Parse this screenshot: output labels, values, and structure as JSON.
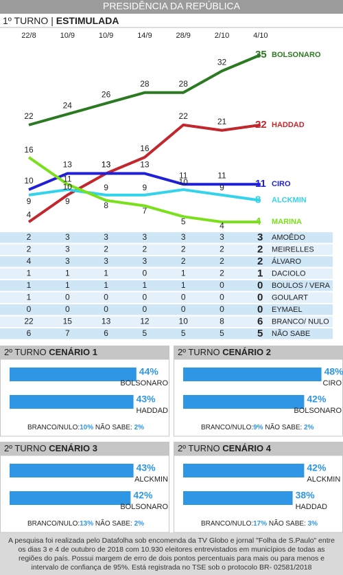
{
  "header": {
    "title": "PRESIDÊNCIA DA REPÚBLICA"
  },
  "chart_data": [
    {
      "type": "line",
      "title": "1º TURNO |",
      "subtitle": "ESTIMULADA",
      "categories": [
        "22/8",
        "10/9",
        "10/9",
        "14/9",
        "28/9",
        "2/10",
        "4/10"
      ],
      "ylim": [
        3,
        36
      ],
      "series": [
        {
          "name": "BOLSONARO",
          "color": "#2b7a21",
          "values": [
            22,
            24,
            26,
            28,
            28,
            32,
            35
          ]
        },
        {
          "name": "HADDAD",
          "color": "#c1272d",
          "values": [
            4,
            9,
            13,
            16,
            22,
            21,
            22
          ]
        },
        {
          "name": "CIRO",
          "color": "#1f1fd6",
          "values": [
            10,
            13,
            13,
            13,
            11,
            11,
            11
          ]
        },
        {
          "name": "ALCKMIN",
          "color": "#33d3ec",
          "values": [
            9,
            10,
            9,
            9,
            10,
            9,
            8
          ]
        },
        {
          "name": "MARINA",
          "color": "#79e01b",
          "values": [
            16,
            11,
            8,
            7,
            5,
            4,
            4
          ]
        }
      ]
    },
    {
      "type": "bar",
      "title": "2º TURNO",
      "subtitle": "CENÁRIO 1",
      "categories": [
        "BOLSONARO",
        "HADDAD"
      ],
      "values": [
        44,
        43
      ],
      "value_labels": [
        "44%",
        "43%"
      ],
      "color": "#2f96e6",
      "xlim": [
        0,
        50
      ],
      "notes": {
        "blank_label": "BRANCO/NULO:",
        "blank": "10%",
        "unknown_label": "NÃO SABE:",
        "unknown": "2%"
      }
    },
    {
      "type": "bar",
      "title": "2º TURNO",
      "subtitle": "CENÁRIO 2",
      "categories": [
        "CIRO",
        "BOLSONARO"
      ],
      "values": [
        48,
        42
      ],
      "value_labels": [
        "48%",
        "42%"
      ],
      "color": "#2f96e6",
      "xlim": [
        0,
        50
      ],
      "notes": {
        "blank_label": "BRANCO/NULO:",
        "blank": "9%",
        "unknown_label": "NÃO SABE:",
        "unknown": "2%"
      }
    },
    {
      "type": "bar",
      "title": "2º TURNO",
      "subtitle": "CENÁRIO 3",
      "categories": [
        "ALCKMIN",
        "BOLSONARO"
      ],
      "values": [
        43,
        42
      ],
      "value_labels": [
        "43%",
        "42%"
      ],
      "color": "#2f96e6",
      "xlim": [
        0,
        50
      ],
      "notes": {
        "blank_label": "BRANCO/NULO:",
        "blank": "13%",
        "unknown_label": "NÃO SABE:",
        "unknown": "2%"
      }
    },
    {
      "type": "bar",
      "title": "2º TURNO",
      "subtitle": "CENÁRIO 4",
      "categories": [
        "ALCKMIN",
        "HADDAD"
      ],
      "values": [
        42,
        38
      ],
      "value_labels": [
        "42%",
        "38%"
      ],
      "color": "#2f96e6",
      "xlim": [
        0,
        50
      ],
      "notes": {
        "blank_label": "BRANCO/NULO:",
        "blank": "17%",
        "unknown_label": "NÃO SABE:",
        "unknown": "3%"
      }
    }
  ],
  "table": {
    "rows": [
      {
        "name": "AMOÊDO",
        "values": [
          2,
          3,
          3,
          3,
          3,
          3,
          3
        ]
      },
      {
        "name": "MEIRELLES",
        "values": [
          2,
          3,
          2,
          2,
          2,
          2,
          2
        ]
      },
      {
        "name": "ÁLVARO",
        "values": [
          4,
          3,
          3,
          3,
          2,
          2,
          2
        ]
      },
      {
        "name": "DACIOLO",
        "values": [
          1,
          1,
          1,
          0,
          1,
          2,
          1
        ]
      },
      {
        "name": "BOULOS / VERA",
        "values": [
          1,
          1,
          1,
          1,
          1,
          0,
          0
        ]
      },
      {
        "name": "GOULART",
        "values": [
          1,
          0,
          0,
          0,
          0,
          0,
          0
        ]
      },
      {
        "name": "EYMAEL",
        "values": [
          0,
          0,
          0,
          0,
          0,
          0,
          0
        ]
      },
      {
        "name": "BRANCO/ NULO",
        "values": [
          22,
          15,
          13,
          12,
          10,
          8,
          6
        ]
      },
      {
        "name": "NÃO SABE",
        "values": [
          6,
          7,
          6,
          5,
          5,
          5,
          5
        ]
      }
    ]
  },
  "footer": {
    "lines": [
      "A pesquisa foi realizada pelo Datafolha sob encomenda da TV Globo e jornal \"Folha de S.Paulo\" entre",
      "os dias 3 e 4 de outubro de 2018 com 10.930 eleitores entrevistados em municípios de todas as",
      "regiões do país. Possui margem de erro de dois pontos percentuais para mais ou para menos e",
      "intervalo de confiança de 95%. Está registrada no TSE sob o protocolo BR- 02581/2018"
    ]
  }
}
